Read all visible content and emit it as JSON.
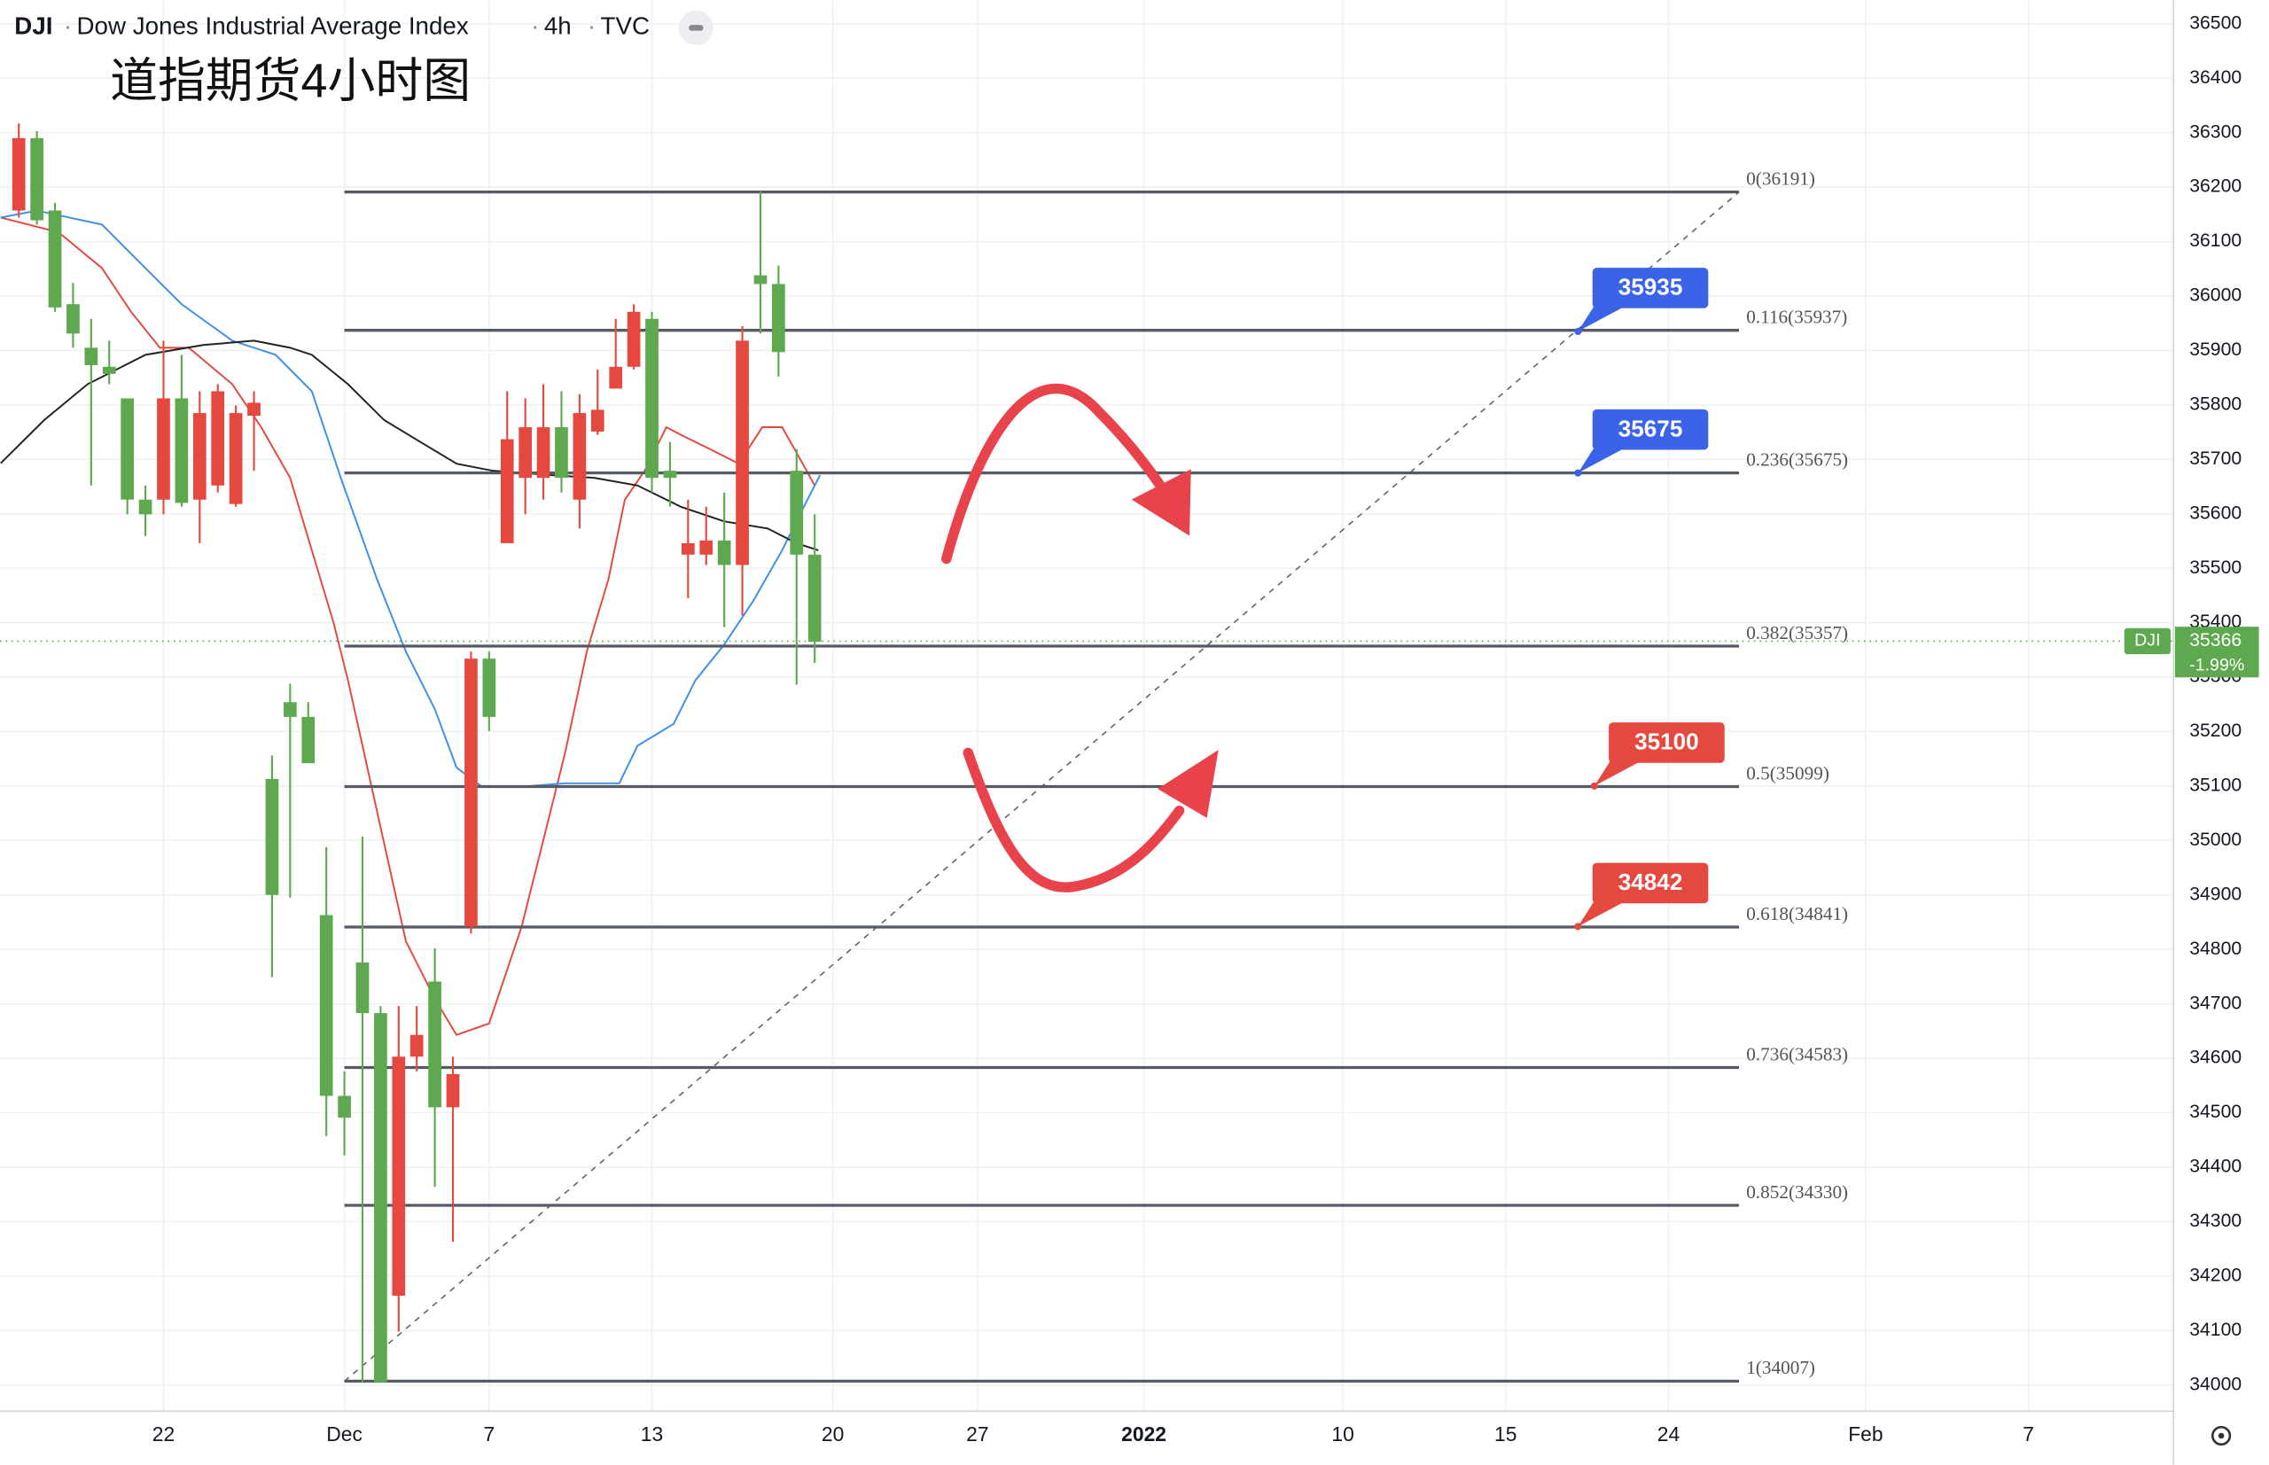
{
  "chart_data": {
    "type": "candlestick",
    "symbol": "DJI",
    "title": "Dow Jones Industrial Average Index",
    "interval": "4h",
    "source": "TVC",
    "annotation": "道指期货4小时图",
    "up_color": "#e5483f",
    "down_color": "#5ea84f",
    "grid": true,
    "xlim": [
      -1.04,
      119.12
    ],
    "xticks": [
      {
        "value": 8,
        "label": "22"
      },
      {
        "value": 18,
        "label": "Dec"
      },
      {
        "value": 26,
        "label": "7"
      },
      {
        "value": 35,
        "label": "13"
      },
      {
        "value": 45,
        "label": "20"
      },
      {
        "value": 53,
        "label": "27"
      },
      {
        "value": 62.2,
        "label": "2022"
      },
      {
        "value": 73.2,
        "label": "10"
      },
      {
        "value": 82.2,
        "label": "15"
      },
      {
        "value": 91.2,
        "label": "24"
      },
      {
        "value": 102.1,
        "label": "Feb"
      },
      {
        "value": 111.1,
        "label": "7"
      }
    ],
    "ylim": [
      33952,
      36543
    ],
    "yticks": [
      34000,
      34100,
      34200,
      34300,
      34400,
      34500,
      34600,
      34700,
      34800,
      34900,
      35000,
      35100,
      35200,
      35300,
      35400,
      35500,
      35600,
      35700,
      35800,
      35900,
      36000,
      36100,
      36200,
      36300,
      36400,
      36500
    ],
    "x": [
      0,
      1,
      2,
      3,
      4,
      5,
      6,
      7,
      8,
      9,
      10,
      11,
      12,
      13,
      14,
      15,
      16,
      17,
      18,
      19,
      20,
      21,
      22,
      23,
      24,
      25,
      26,
      27,
      28,
      29,
      30,
      31,
      32,
      33,
      34,
      35,
      36,
      37,
      38,
      39,
      40,
      41,
      42,
      43,
      44
    ],
    "open": [
      36157,
      36290,
      36157,
      35985,
      35905,
      35870,
      35812,
      35626,
      35626,
      35812,
      35626,
      35652,
      35618,
      35780,
      35113,
      35254,
      35227,
      34863,
      34531,
      34776,
      34683,
      34164,
      34603,
      34741,
      34510,
      34842,
      35334,
      35546,
      35666,
      35666,
      35759,
      35626,
      35751,
      35830,
      35870,
      35958,
      35679,
      35525,
      35525,
      35551,
      35506,
      36038,
      36022,
      35679,
      35525
    ],
    "high": [
      36317,
      36303,
      36171,
      36024,
      35958,
      35918,
      35812,
      35652,
      35918,
      35892,
      35825,
      35838,
      35799,
      35825,
      35156,
      35288,
      35254,
      34988,
      34576,
      35007,
      34696,
      34696,
      34696,
      34802,
      34603,
      35347,
      35347,
      35825,
      35812,
      35838,
      35825,
      35820,
      35865,
      35958,
      35985,
      35971,
      35732,
      35626,
      35613,
      35639,
      35945,
      36192,
      36056,
      35719,
      35599
    ],
    "low": [
      36144,
      36131,
      35971,
      35905,
      35652,
      35838,
      35599,
      35559,
      35599,
      35613,
      35546,
      35639,
      35613,
      35679,
      34749,
      34895,
      35142,
      34457,
      34422,
      34005,
      34005,
      34098,
      34576,
      34364,
      34263,
      34829,
      35201,
      35546,
      35599,
      35626,
      35639,
      35573,
      35745,
      35830,
      35865,
      35639,
      35613,
      35445,
      35506,
      35392,
      35413,
      35931,
      35852,
      35286,
      35326
    ],
    "close": [
      36290,
      36139,
      35979,
      35931,
      35873,
      35857,
      35626,
      35599,
      35812,
      35620,
      35785,
      35825,
      35785,
      35804,
      34900,
      35227,
      35142,
      34531,
      34491,
      34683,
      34005,
      34603,
      34643,
      34510,
      34571,
      35334,
      35227,
      35737,
      35759,
      35759,
      35666,
      35785,
      35791,
      35870,
      35971,
      35666,
      35666,
      35546,
      35551,
      35506,
      35918,
      36022,
      35897,
      35525,
      35365
    ],
    "overlays": [
      {
        "color": "#e5483f",
        "x": [
          -1,
          2.2,
          4.6,
          6.2,
          7.8,
          9.4,
          11.8,
          13.4,
          15,
          16.2,
          17.4,
          18.2,
          19.8,
          21.4,
          23,
          24.2,
          26,
          27.8,
          29,
          30.2,
          31.4,
          32.6,
          33.5,
          34.6,
          35.8,
          36.6,
          38.2,
          39.8,
          41.1,
          42.2,
          43.1,
          44
        ],
        "values": [
          36144,
          36117,
          36051,
          35971,
          35905,
          35905,
          35838,
          35759,
          35666,
          35533,
          35400,
          35294,
          35054,
          34815,
          34709,
          34643,
          34664,
          34842,
          35001,
          35161,
          35347,
          35480,
          35626,
          35679,
          35759,
          35745,
          35719,
          35692,
          35759,
          35759,
          35706,
          35652
        ]
      },
      {
        "color": "#3d8ee8",
        "x": [
          -1,
          1,
          4.6,
          7,
          9,
          11.8,
          14.2,
          16.2,
          17.8,
          19.8,
          21.4,
          23,
          24.2,
          25.6,
          27.8,
          30.2,
          33.2,
          34.2,
          36.2,
          37.4,
          39,
          40.6,
          42.2,
          43.4,
          44.3
        ],
        "values": [
          36144,
          36157,
          36131,
          36051,
          35985,
          35918,
          35892,
          35825,
          35666,
          35480,
          35347,
          35241,
          35134,
          35099,
          35099,
          35105,
          35105,
          35174,
          35214,
          35294,
          35360,
          35440,
          35533,
          35613,
          35671
        ]
      },
      {
        "color": "#222222",
        "x": [
          -1,
          1.4,
          3.8,
          7,
          10.2,
          13,
          15,
          16.2,
          18.2,
          20.2,
          22.2,
          24.2,
          26.2,
          29.4,
          31.8,
          34.2,
          36.6,
          39,
          41.4,
          43,
          44.2
        ],
        "values": [
          35693,
          35772,
          35838,
          35892,
          35910,
          35918,
          35905,
          35892,
          35838,
          35772,
          35732,
          35692,
          35679,
          35671,
          35666,
          35652,
          35613,
          35586,
          35573,
          35546,
          35533
        ]
      }
    ],
    "fib": {
      "x": [
        18,
        95.1
      ],
      "color": "#555a63",
      "levels": [
        {
          "value": 36191,
          "label": "0(36191)"
        },
        {
          "value": 35937,
          "label": "0.116(35937)"
        },
        {
          "value": 35675,
          "label": "0.236(35675)"
        },
        {
          "value": 35357,
          "label": "0.382(35357)"
        },
        {
          "value": 35099,
          "label": "0.5(35099)"
        },
        {
          "value": 34841,
          "label": "0.618(34841)"
        },
        {
          "value": 34583,
          "label": "0.736(34583)"
        },
        {
          "value": 34330,
          "label": "0.852(34330)"
        },
        {
          "value": 34007,
          "label": "1(34007)"
        }
      ]
    },
    "callouts": [
      {
        "value": 35935,
        "x": 86.2,
        "color": "#3a63e8"
      },
      {
        "value": 35675,
        "x": 86.2,
        "color": "#3a63e8"
      },
      {
        "value": 35100,
        "x": 87.1,
        "color": "#e5483f"
      },
      {
        "value": 34842,
        "x": 86.2,
        "color": "#e5483f"
      }
    ],
    "last_price": {
      "symbol": "DJI",
      "value": 35366,
      "change": {
        "value": -1.99,
        "label": "-1.99%"
      },
      "color": "#5ea84f"
    }
  }
}
